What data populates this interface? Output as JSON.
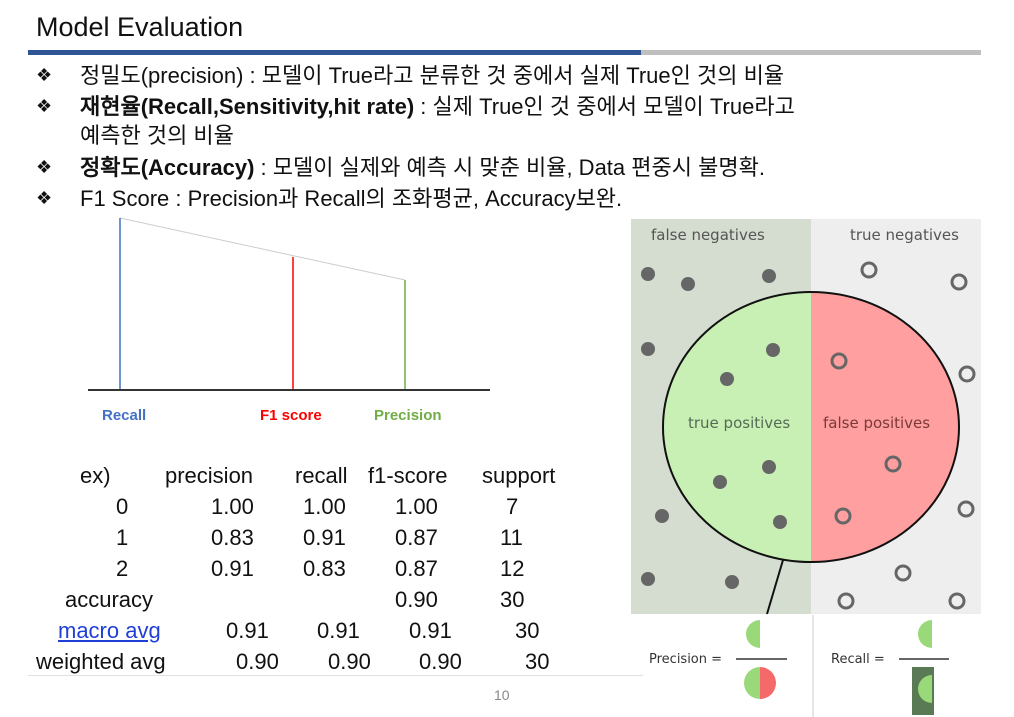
{
  "title": "Model Evaluation",
  "bullets": [
    {
      "marker": "❖",
      "bold": "",
      "text": "정밀도(precision) : 모델이 True라고 분류한 것 중에서 실제 True인 것의 비율"
    },
    {
      "marker": "❖",
      "bold": "재현율(Recall,Sensitivity,hit rate)",
      "text": " : 실제 True인 것 중에서 모델이 True라고",
      "cont": "예측한 것의 비율"
    },
    {
      "marker": "❖",
      "bold": "정확도(Accuracy)",
      "text": " : 모델이 실제와 예측 시 맞춘 비율, Data 편중시 불명확."
    },
    {
      "marker": "❖",
      "bold": "",
      "text": "F1 Score : Precision과 Recall의 조화평균, Accuracy보완."
    }
  ],
  "line_chart": {
    "labels": {
      "recall": "Recall",
      "f1": "F1 score",
      "precision": "Precision"
    },
    "colors": {
      "recall": "#4472c4",
      "f1": "#ff0000",
      "precision": "#70ad47"
    }
  },
  "report": {
    "headers": [
      "ex)",
      "precision",
      "recall",
      "f1-score",
      "support"
    ],
    "rows": [
      [
        "0",
        "1.00",
        "1.00",
        "1.00",
        "7"
      ],
      [
        "1",
        "0.83",
        "0.91",
        "0.87",
        "11"
      ],
      [
        "2",
        "0.91",
        "0.83",
        "0.87",
        "12"
      ]
    ],
    "accuracy": {
      "label": "accuracy",
      "f1": "0.90",
      "support": "30"
    },
    "macro": {
      "label": "macro avg",
      "p": "0.91",
      "r": "0.91",
      "f": "0.91",
      "s": "30"
    },
    "weighted": {
      "label": "weighted avg",
      "p": "0.90",
      "r": "0.90",
      "f": "0.90",
      "s": "30"
    }
  },
  "diagram": {
    "false_negatives": "false negatives",
    "true_negatives": "true negatives",
    "true_positives": "true positives",
    "false_positives": "false positives",
    "precision_eq": "Precision =",
    "recall_eq": "Recall =",
    "colors": {
      "left_bg": "#d5ddd0",
      "right_bg": "#eeeeee",
      "tp": "#c9f0b4",
      "fp": "#ff9f9f",
      "dot": "#666666"
    }
  },
  "page_number": "10"
}
